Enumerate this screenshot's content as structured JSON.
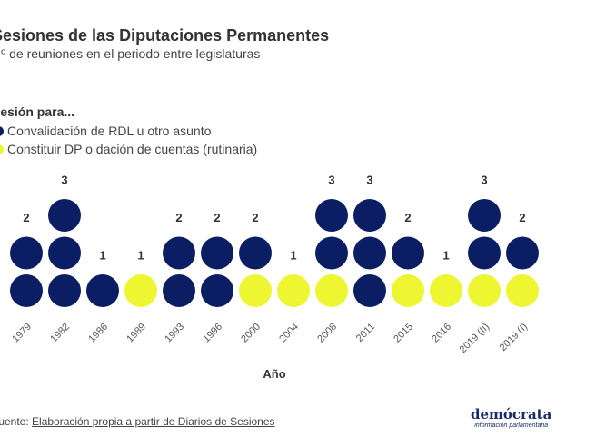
{
  "colors": {
    "convalidacion": "#0b1d63",
    "rutinaria": "#eef531"
  },
  "chart_data": {
    "type": "stacked-dot",
    "title": "Sesiones de las Diputaciones Permanentes",
    "subtitle": "Nº de reuniones en el periodo entre legislaturas",
    "legend_title": "Sesión para...",
    "legend_placement": "top-left",
    "xlabel": "Año",
    "categories": [
      "1979",
      "1982",
      "1986",
      "1989",
      "1993",
      "1996",
      "2000",
      "2004",
      "2008",
      "2011",
      "2015",
      "2016",
      "2019 (II)",
      "2019 (I)"
    ],
    "series": [
      {
        "name": "Constituir DP o dación de cuentas (rutinaria)",
        "key": "rutinaria",
        "values": [
          0,
          0,
          0,
          1,
          0,
          0,
          1,
          1,
          1,
          0,
          1,
          1,
          1,
          1
        ]
      },
      {
        "name": "Convalidación de RDL u otro asunto",
        "key": "convalidacion",
        "values": [
          2,
          3,
          1,
          0,
          2,
          2,
          1,
          0,
          2,
          3,
          1,
          0,
          2,
          1
        ]
      }
    ],
    "totals": [
      2,
      3,
      1,
      1,
      2,
      2,
      2,
      1,
      3,
      3,
      2,
      1,
      3,
      2
    ]
  },
  "footer": {
    "source_prefix": "Fuente: ",
    "source_link": "Elaboración propia a partir de Diarios de Sesiones"
  },
  "logo": {
    "name": "demócrata",
    "tagline": "información parlamentaria"
  }
}
